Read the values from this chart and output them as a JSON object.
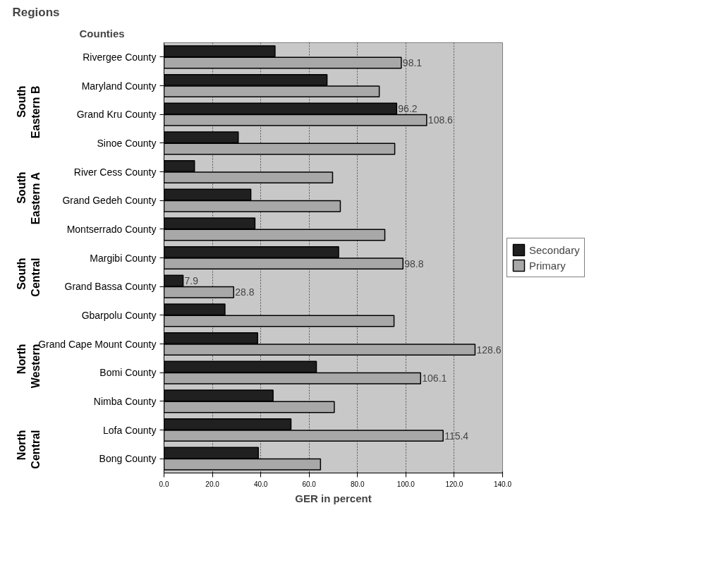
{
  "chart_data": {
    "type": "bar",
    "orientation": "horizontal",
    "xlabel": "GER in percent",
    "categories": [
      "Rivergee County",
      "Maryland County",
      "Grand Kru County",
      "Sinoe County",
      "River Cess County",
      "Grand Gedeh County",
      "Montserrado County",
      "Margibi County",
      "Grand Bassa County",
      "Gbarpolu County",
      "Grand Cape Mount County",
      "Bomi County",
      "Nimba County",
      "Lofa County",
      "Bong County"
    ],
    "series": [
      {
        "name": "Secondary",
        "color": "#202020",
        "values": [
          45.9,
          67.4,
          96.2,
          30.7,
          12.6,
          35.9,
          37.6,
          72.2,
          7.9,
          25.2,
          38.7,
          63.0,
          45.1,
          52.5,
          39.0
        ],
        "value_labels": [
          null,
          null,
          "96.2",
          null,
          null,
          null,
          null,
          null,
          "7.9",
          null,
          null,
          null,
          null,
          null,
          null
        ]
      },
      {
        "name": "Primary",
        "color": "#a8a8a8",
        "values": [
          98.1,
          89.0,
          108.6,
          95.4,
          69.7,
          72.9,
          91.3,
          98.8,
          28.8,
          95.1,
          128.6,
          106.1,
          70.4,
          115.4,
          64.7
        ],
        "value_labels": [
          "98.1",
          null,
          "108.6",
          null,
          null,
          null,
          null,
          "98.8",
          "28.8",
          null,
          "128.6",
          "106.1",
          null,
          "115.4",
          null
        ]
      }
    ],
    "xlim": [
      0,
      140
    ],
    "xticks": [
      {
        "value": 0,
        "label": "0.0"
      },
      {
        "value": 20,
        "label": "20.0"
      },
      {
        "value": 40,
        "label": "40.0"
      },
      {
        "value": 60,
        "label": "60.0"
      },
      {
        "value": 80,
        "label": "80.0"
      },
      {
        "value": 100,
        "label": "100.0"
      },
      {
        "value": 120,
        "label": "120.0"
      },
      {
        "value": 140,
        "label": "140.0"
      }
    ],
    "grid": "x",
    "legend": "right",
    "annotations": [
      "Regions",
      "Counties",
      "South Eastern B",
      "South Eastern A",
      "South Central",
      "North Western",
      "North Central"
    ]
  }
}
